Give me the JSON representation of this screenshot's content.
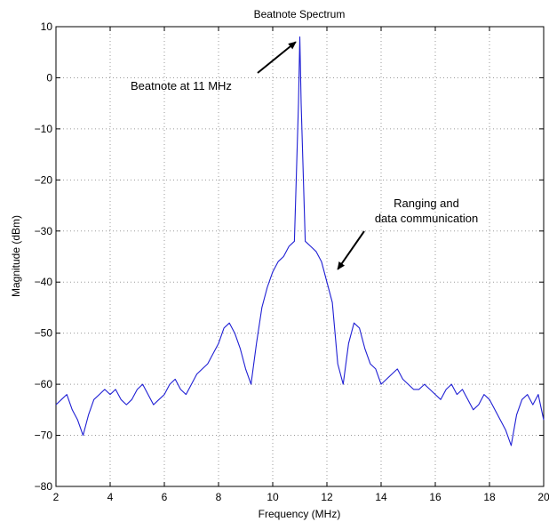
{
  "chart_data": {
    "type": "line",
    "title": "Beatnote Spectrum",
    "xlabel": "Frequency (MHz)",
    "ylabel": "Magnitude (dBm)",
    "xlim": [
      2,
      20
    ],
    "ylim": [
      -80,
      10
    ],
    "xticks": [
      "2",
      "4",
      "6",
      "8",
      "10",
      "12",
      "14",
      "16",
      "18",
      "20"
    ],
    "yticks": [
      "10",
      "0",
      "−10",
      "−20",
      "−30",
      "−40",
      "−50",
      "−60",
      "−70",
      "−80"
    ],
    "grid": true,
    "series_color": "#1f1fd4",
    "annotations": [
      {
        "text": "Beatnote at 11 MHz",
        "arrow_to": [
          10.85,
          7
        ]
      },
      {
        "lines": [
          "Ranging and",
          "data communication"
        ],
        "arrow_to": [
          12.4,
          -37.5
        ]
      }
    ],
    "series": [
      {
        "x": [
          2.0,
          2.2,
          2.4,
          2.6,
          2.8,
          3.0,
          3.2,
          3.4,
          3.6,
          3.8,
          4.0,
          4.2,
          4.4,
          4.6,
          4.8,
          5.0,
          5.2,
          5.4,
          5.6,
          5.8,
          6.0,
          6.2,
          6.4,
          6.6,
          6.8,
          7.0,
          7.2,
          7.4,
          7.6,
          7.8,
          8.0,
          8.2,
          8.4,
          8.6,
          8.8,
          9.0,
          9.2,
          9.4,
          9.6,
          9.8,
          10.0,
          10.2,
          10.4,
          10.6,
          10.8,
          10.95,
          11.0,
          11.05,
          11.2,
          11.4,
          11.6,
          11.8,
          12.0,
          12.2,
          12.4,
          12.6,
          12.8,
          13.0,
          13.2,
          13.4,
          13.6,
          13.8,
          14.0,
          14.2,
          14.4,
          14.6,
          14.8,
          15.0,
          15.2,
          15.4,
          15.6,
          15.8,
          16.0,
          16.2,
          16.4,
          16.6,
          16.8,
          17.0,
          17.2,
          17.4,
          17.6,
          17.8,
          18.0,
          18.2,
          18.4,
          18.6,
          18.8,
          19.0,
          19.2,
          19.4,
          19.6,
          19.8,
          20.0
        ],
        "y": [
          -64,
          -63,
          -62,
          -65,
          -67,
          -70,
          -66,
          -63,
          -62,
          -61,
          -62,
          -61,
          -63,
          -64,
          -63,
          -61,
          -60,
          -62,
          -64,
          -63,
          -62,
          -60,
          -59,
          -61,
          -62,
          -60,
          -58,
          -57,
          -56,
          -54,
          -52,
          -49,
          -48,
          -50,
          -53,
          -57,
          -60,
          -52,
          -45,
          -41,
          -38,
          -36,
          -35,
          -33,
          -32,
          -5,
          8,
          -5,
          -32,
          -33,
          -34,
          -36,
          -40,
          -44,
          -56,
          -60,
          -52,
          -48,
          -49,
          -53,
          -56,
          -57,
          -60,
          -59,
          -58,
          -57,
          -59,
          -60,
          -61,
          -61,
          -60,
          -61,
          -62,
          -63,
          -61,
          -60,
          -62,
          -61,
          -63,
          -65,
          -64,
          -62,
          -63,
          -65,
          -67,
          -69,
          -72,
          -66,
          -63,
          -62,
          -64,
          -62,
          -67
        ]
      }
    ]
  }
}
